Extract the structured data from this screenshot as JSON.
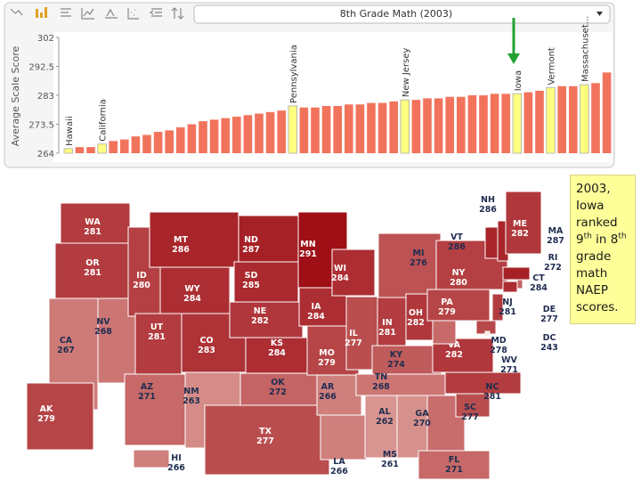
{
  "toolbar": {
    "dropdown": "8th Grade Math (2003)"
  },
  "chart_data": {
    "type": "bar",
    "y_label": "Average Scale Score",
    "categories": [
      "Hawaii",
      null,
      null,
      "California",
      null,
      null,
      null,
      null,
      null,
      null,
      null,
      null,
      null,
      null,
      null,
      null,
      null,
      null,
      null,
      null,
      "Pennsylvania",
      null,
      null,
      null,
      null,
      null,
      null,
      null,
      null,
      null,
      "New Jersey",
      null,
      null,
      null,
      null,
      null,
      null,
      null,
      null,
      null,
      "Iowa",
      null,
      null,
      "Vermont",
      null,
      null,
      "Massachuset...",
      null,
      null
    ],
    "values": [
      265.5,
      266,
      266,
      267,
      268,
      268.5,
      269.5,
      270,
      271,
      271.5,
      272.5,
      273.5,
      274.5,
      275,
      275.5,
      276,
      276.5,
      277,
      277.5,
      278,
      279.5,
      279,
      279,
      279.5,
      279.5,
      280,
      280,
      280.5,
      280.5,
      281,
      281.5,
      281.5,
      282,
      282,
      282.5,
      282.5,
      283,
      283,
      283.5,
      283.5,
      283.5,
      284,
      284.5,
      285.5,
      286,
      286,
      286.5,
      287,
      290.5
    ],
    "color": "#f2735c",
    "highlight_color": "#ffff80",
    "ylim": [
      264,
      302
    ],
    "yticks": [
      264,
      273.5,
      283,
      292.5,
      302
    ]
  },
  "map": {
    "color_scale": [
      "#fde6da",
      "#9e0f16"
    ],
    "states": [
      {
        "abbr": "WA",
        "value": 281
      },
      {
        "abbr": "OR",
        "value": 281
      },
      {
        "abbr": "CA",
        "value": 267
      },
      {
        "abbr": "NV",
        "value": 268
      },
      {
        "abbr": "ID",
        "value": 280
      },
      {
        "abbr": "MT",
        "value": 286
      },
      {
        "abbr": "WY",
        "value": 284
      },
      {
        "abbr": "UT",
        "value": 281
      },
      {
        "abbr": "CO",
        "value": 283
      },
      {
        "abbr": "AZ",
        "value": 271
      },
      {
        "abbr": "NM",
        "value": 263
      },
      {
        "abbr": "ND",
        "value": 287
      },
      {
        "abbr": "SD",
        "value": 285
      },
      {
        "abbr": "NE",
        "value": 282
      },
      {
        "abbr": "KS",
        "value": 284
      },
      {
        "abbr": "OK",
        "value": 272
      },
      {
        "abbr": "TX",
        "value": 277
      },
      {
        "abbr": "MN",
        "value": 291
      },
      {
        "abbr": "IA",
        "value": 284
      },
      {
        "abbr": "MO",
        "value": 279
      },
      {
        "abbr": "AR",
        "value": 266
      },
      {
        "abbr": "LA",
        "value": 266
      },
      {
        "abbr": "WI",
        "value": 284
      },
      {
        "abbr": "IL",
        "value": 277
      },
      {
        "abbr": "MI",
        "value": 276
      },
      {
        "abbr": "IN",
        "value": 281
      },
      {
        "abbr": "OH",
        "value": 282
      },
      {
        "abbr": "KY",
        "value": 274
      },
      {
        "abbr": "TN",
        "value": 268
      },
      {
        "abbr": "MS",
        "value": 261
      },
      {
        "abbr": "AL",
        "value": 262
      },
      {
        "abbr": "GA",
        "value": 270
      },
      {
        "abbr": "FL",
        "value": 271
      },
      {
        "abbr": "SC",
        "value": 277
      },
      {
        "abbr": "NC",
        "value": 281
      },
      {
        "abbr": "VA",
        "value": 282
      },
      {
        "abbr": "WV",
        "value": 271
      },
      {
        "abbr": "MD",
        "value": 278
      },
      {
        "abbr": "DE",
        "value": 277
      },
      {
        "abbr": "DC",
        "value": 243
      },
      {
        "abbr": "PA",
        "value": 279
      },
      {
        "abbr": "NY",
        "value": 280
      },
      {
        "abbr": "NJ",
        "value": 281
      },
      {
        "abbr": "CT",
        "value": 284
      },
      {
        "abbr": "RI",
        "value": 272
      },
      {
        "abbr": "MA",
        "value": 287
      },
      {
        "abbr": "VT",
        "value": 286
      },
      {
        "abbr": "NH",
        "value": 286
      },
      {
        "abbr": "ME",
        "value": 282
      },
      {
        "abbr": "AK",
        "value": 279
      },
      {
        "abbr": "HI",
        "value": 266
      }
    ]
  },
  "note": [
    {
      "text": "2003, Iowa ranked 9"
    },
    {
      "text": "th",
      "sup": true
    },
    {
      "text": " in 8"
    },
    {
      "text": "th",
      "sup": true
    },
    {
      "text": " grade math NAEP scores."
    }
  ]
}
